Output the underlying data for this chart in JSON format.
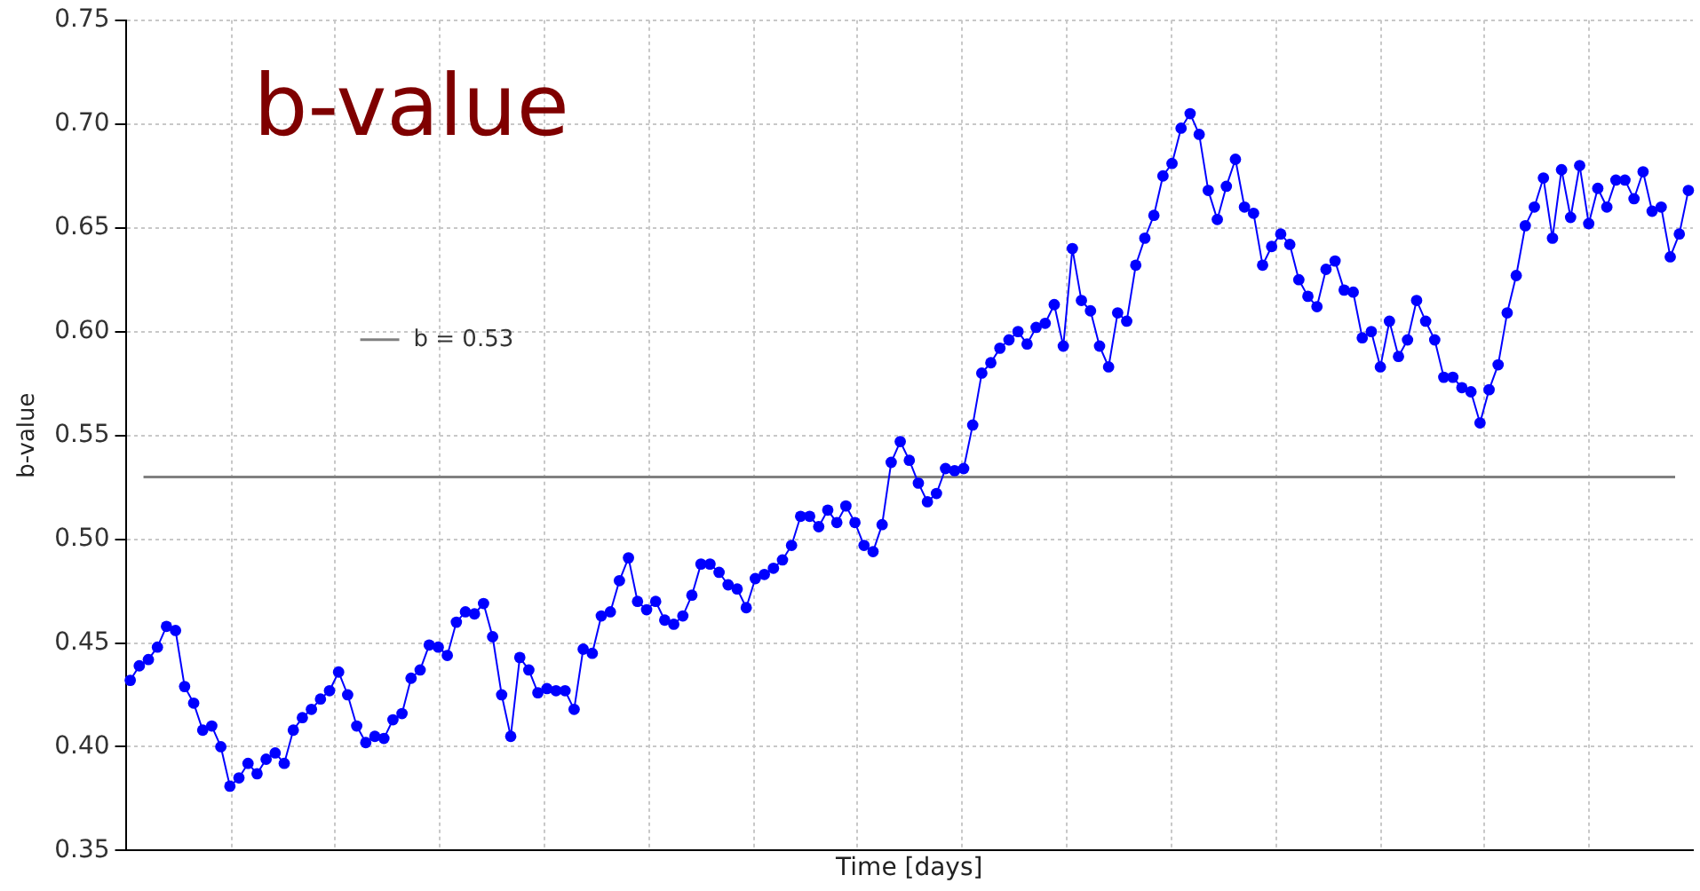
{
  "chart_data": {
    "type": "line",
    "annotations": [
      "b-value"
    ],
    "xlabel": "Time [days]",
    "ylabel": "b-value",
    "categories": [
      null,
      null,
      null,
      null,
      null,
      null,
      null,
      null,
      null,
      null,
      null,
      null,
      null,
      null,
      null,
      null,
      null,
      null,
      null,
      null,
      null,
      null,
      null,
      null,
      null,
      null,
      null,
      null,
      null,
      null,
      null,
      null,
      null,
      null,
      null,
      null,
      null,
      null,
      null,
      null,
      null,
      null,
      null,
      null,
      null,
      null,
      null,
      null,
      null,
      null,
      null,
      null,
      null,
      null,
      null,
      null,
      null,
      null,
      null,
      null,
      null,
      null,
      null,
      null,
      null,
      null,
      null,
      null,
      null,
      null,
      null,
      null,
      null,
      null,
      null,
      null,
      null,
      null,
      null,
      null,
      null,
      null,
      null,
      null,
      null,
      null,
      null,
      null,
      null,
      null,
      null,
      null,
      null,
      null,
      null,
      null,
      null,
      null,
      null,
      null,
      null,
      null,
      null,
      null,
      null,
      null,
      null,
      null,
      null,
      null,
      null,
      null,
      null,
      null,
      null,
      null,
      null,
      null,
      null,
      null,
      null,
      null,
      null,
      null,
      null,
      null,
      null,
      null,
      null,
      null,
      null,
      null,
      null,
      null,
      null,
      null,
      null,
      null,
      null,
      null,
      null,
      null,
      null,
      null,
      null,
      null,
      null,
      null,
      null,
      null,
      null,
      null,
      null,
      null,
      null,
      null,
      null,
      null,
      null,
      null,
      null,
      null,
      null,
      null,
      null,
      null,
      null,
      null,
      null,
      null,
      null,
      null,
      null
    ],
    "series": [
      {
        "color": "#0000ff",
        "values": [
          0.432,
          0.439,
          0.442,
          0.448,
          0.458,
          0.456,
          0.429,
          0.421,
          0.408,
          0.41,
          0.4,
          0.381,
          0.385,
          0.392,
          0.387,
          0.394,
          0.397,
          0.392,
          0.408,
          0.414,
          0.418,
          0.423,
          0.427,
          0.436,
          0.425,
          0.41,
          0.402,
          0.405,
          0.404,
          0.413,
          0.416,
          0.433,
          0.437,
          0.449,
          0.448,
          0.444,
          0.46,
          0.465,
          0.464,
          0.469,
          0.453,
          0.425,
          0.405,
          0.443,
          0.437,
          0.426,
          0.428,
          0.427,
          0.427,
          0.418,
          0.447,
          0.445,
          0.463,
          0.465,
          0.48,
          0.491,
          0.47,
          0.466,
          0.47,
          0.461,
          0.459,
          0.463,
          0.473,
          0.488,
          0.488,
          0.484,
          0.478,
          0.476,
          0.467,
          0.481,
          0.483,
          0.486,
          0.49,
          0.497,
          0.511,
          0.511,
          0.506,
          0.514,
          0.508,
          0.516,
          0.508,
          0.497,
          0.494,
          0.507,
          0.537,
          0.547,
          0.538,
          0.527,
          0.518,
          0.522,
          0.534,
          0.533,
          0.534,
          0.555,
          0.58,
          0.585,
          0.592,
          0.596,
          0.6,
          0.594,
          0.602,
          0.604,
          0.613,
          0.593,
          0.64,
          0.615,
          0.61,
          0.593,
          0.583,
          0.609,
          0.605,
          0.632,
          0.645,
          0.656,
          0.675,
          0.681,
          0.698,
          0.705,
          0.695,
          0.668,
          0.654,
          0.67,
          0.683,
          0.66,
          0.657,
          0.632,
          0.641,
          0.647,
          0.642,
          0.625,
          0.617,
          0.612,
          0.63,
          0.634,
          0.62,
          0.619,
          0.597,
          0.6,
          0.583,
          0.605,
          0.588,
          0.596,
          0.615,
          0.605,
          0.596,
          0.578,
          0.578,
          0.573,
          0.571,
          0.556,
          0.572,
          0.584,
          0.609,
          0.627,
          0.651,
          0.66,
          0.674,
          0.645,
          0.678,
          0.655,
          0.68,
          0.652,
          0.669,
          0.66,
          0.673,
          0.673,
          0.664,
          0.677,
          0.658,
          0.66,
          0.636,
          0.647,
          0.668
        ]
      }
    ],
    "ylim": [
      0.35,
      0.75
    ],
    "yticks": [
      {
        "value": 0.35,
        "label": "0.35"
      },
      {
        "value": 0.4,
        "label": "0.40"
      },
      {
        "value": 0.45,
        "label": "0.45"
      },
      {
        "value": 0.5,
        "label": "0.50"
      },
      {
        "value": 0.55,
        "label": "0.55"
      },
      {
        "value": 0.6,
        "label": "0.60"
      },
      {
        "value": 0.65,
        "label": "0.65"
      },
      {
        "value": 0.7,
        "label": "0.70"
      },
      {
        "value": 0.75,
        "label": "0.75"
      }
    ],
    "ref_lines": [
      {
        "axis": "y",
        "value": 0.53,
        "label": "b = 0.53",
        "color": "#808080"
      }
    ],
    "grid": true,
    "marker": "circle",
    "line_style": "solid",
    "tick_labels": "y"
  }
}
